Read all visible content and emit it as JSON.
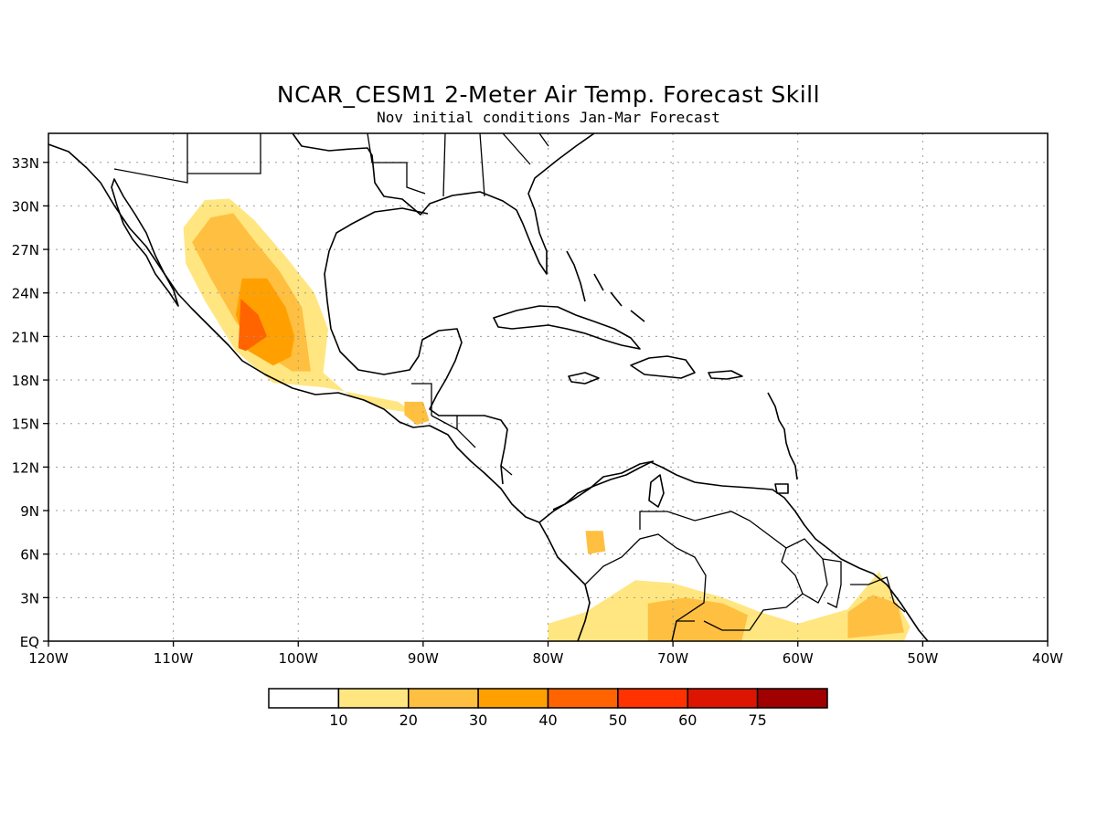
{
  "title": "NCAR_CESM1 2-Meter Air Temp. Forecast Skill",
  "subtitle": "Nov initial conditions  Jan-Mar Forecast",
  "map": {
    "lon_range": [
      -120,
      -40
    ],
    "lat_range": [
      0,
      35
    ],
    "x_ticks": [
      {
        "lon": -120,
        "label": "120W"
      },
      {
        "lon": -110,
        "label": "110W"
      },
      {
        "lon": -100,
        "label": "100W"
      },
      {
        "lon": -90,
        "label": "90W"
      },
      {
        "lon": -80,
        "label": "80W"
      },
      {
        "lon": -70,
        "label": "70W"
      },
      {
        "lon": -60,
        "label": "60W"
      },
      {
        "lon": -50,
        "label": "50W"
      },
      {
        "lon": -40,
        "label": "40W"
      }
    ],
    "y_ticks": [
      {
        "lat": 0,
        "label": "EQ"
      },
      {
        "lat": 3,
        "label": "3N"
      },
      {
        "lat": 6,
        "label": "6N"
      },
      {
        "lat": 9,
        "label": "9N"
      },
      {
        "lat": 12,
        "label": "12N"
      },
      {
        "lat": 15,
        "label": "15N"
      },
      {
        "lat": 18,
        "label": "18N"
      },
      {
        "lat": 21,
        "label": "21N"
      },
      {
        "lat": 24,
        "label": "24N"
      },
      {
        "lat": 27,
        "label": "27N"
      },
      {
        "lat": 30,
        "label": "30N"
      },
      {
        "lat": 33,
        "label": "33N"
      }
    ],
    "grid": true
  },
  "colorbar": {
    "labels": [
      "10",
      "20",
      "30",
      "40",
      "50",
      "60",
      "75"
    ],
    "colors": [
      "#ffffff",
      "#ffe680",
      "#ffbf40",
      "#ffa000",
      "#ff6400",
      "#ff3200",
      "#dd1500",
      "#a00000"
    ]
  },
  "skill_regions": [
    {
      "name": "mexico-sierra-madre",
      "level": 1,
      "lonlat": [
        [
          -107.5,
          30.4
        ],
        [
          -105.5,
          30.5
        ],
        [
          -103.5,
          29
        ],
        [
          -101,
          26.5
        ],
        [
          -98.7,
          24
        ],
        [
          -97.6,
          21.5
        ],
        [
          -98,
          18.5
        ],
        [
          -96,
          17
        ],
        [
          -93,
          16
        ],
        [
          -90,
          15.6
        ],
        [
          -89.5,
          15
        ],
        [
          -92,
          16.5
        ],
        [
          -98,
          17.5
        ],
        [
          -102,
          17.8
        ],
        [
          -105,
          20
        ],
        [
          -107.5,
          23.5
        ],
        [
          -109,
          26
        ],
        [
          -109.2,
          28.5
        ]
      ]
    },
    {
      "name": "mexico-sierra-madre",
      "level": 2,
      "lonlat": [
        [
          -107,
          29.2
        ],
        [
          -105.2,
          29.5
        ],
        [
          -103.5,
          27.6
        ],
        [
          -101.5,
          25.5
        ],
        [
          -99.7,
          23
        ],
        [
          -99.3,
          20.5
        ],
        [
          -99,
          18.6
        ],
        [
          -100.5,
          18.6
        ],
        [
          -103,
          20
        ],
        [
          -105,
          22
        ],
        [
          -107,
          25
        ],
        [
          -108.5,
          27.5
        ]
      ]
    },
    {
      "name": "mexico-sierra-madre",
      "level": 3,
      "lonlat": [
        [
          -104.5,
          25
        ],
        [
          -102.5,
          25
        ],
        [
          -101,
          23
        ],
        [
          -100.3,
          21
        ],
        [
          -100.6,
          19.6
        ],
        [
          -102,
          19
        ],
        [
          -104,
          20
        ],
        [
          -105,
          22.5
        ]
      ]
    },
    {
      "name": "mexico-west-core",
      "level": 4,
      "lonlat": [
        [
          -104.6,
          23.6
        ],
        [
          -103.2,
          22.5
        ],
        [
          -102.5,
          21
        ],
        [
          -104.2,
          20
        ],
        [
          -104.8,
          20.2
        ]
      ]
    },
    {
      "name": "guatemala",
      "level": 2,
      "lonlat": [
        [
          -91.5,
          16.5
        ],
        [
          -90,
          16.5
        ],
        [
          -89.5,
          15.2
        ],
        [
          -90.5,
          14.9
        ],
        [
          -91.5,
          15.6
        ]
      ]
    },
    {
      "name": "colombia-south",
      "level": 1,
      "lonlat": [
        [
          -80,
          1.2
        ],
        [
          -77,
          2
        ],
        [
          -73,
          4.2
        ],
        [
          -70,
          4
        ],
        [
          -66,
          3
        ],
        [
          -63,
          2
        ],
        [
          -60,
          1.2
        ],
        [
          -56,
          2.2
        ],
        [
          -53.5,
          4.8
        ],
        [
          -51,
          1
        ],
        [
          -51.5,
          0
        ],
        [
          -80,
          0
        ]
      ]
    },
    {
      "name": "amazon-west",
      "level": 2,
      "lonlat": [
        [
          -72,
          2.6
        ],
        [
          -69,
          3
        ],
        [
          -66,
          2.6
        ],
        [
          -64,
          1.8
        ],
        [
          -64.5,
          0
        ],
        [
          -72,
          0
        ]
      ]
    },
    {
      "name": "guiana-east",
      "level": 2,
      "lonlat": [
        [
          -56,
          2
        ],
        [
          -54,
          3.2
        ],
        [
          -52,
          2.6
        ],
        [
          -51.5,
          0.6
        ],
        [
          -56,
          0.2
        ]
      ]
    },
    {
      "name": "colombia-spot",
      "level": 2,
      "lonlat": [
        [
          -77,
          7.6
        ],
        [
          -75.6,
          7.6
        ],
        [
          -75.4,
          6.2
        ],
        [
          -76.8,
          6
        ]
      ]
    }
  ]
}
